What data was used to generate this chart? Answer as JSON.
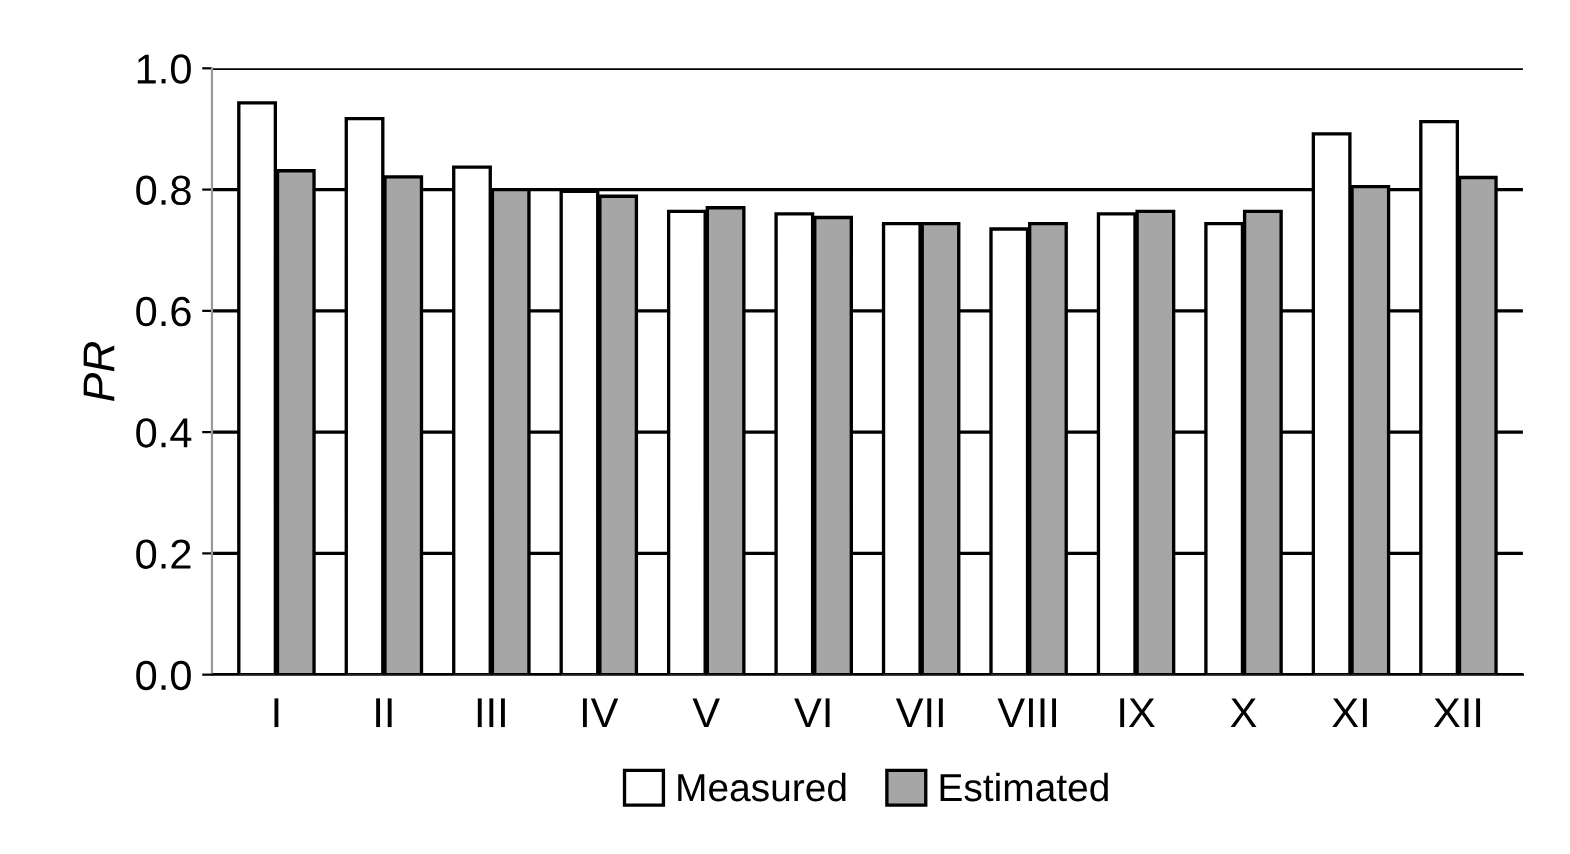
{
  "chart_data": {
    "type": "bar",
    "ylabel": "PR",
    "categories": [
      "I",
      "II",
      "III",
      "IV",
      "V",
      "VI",
      "VII",
      "VIII",
      "IX",
      "X",
      "XI",
      "XII"
    ],
    "series": [
      {
        "name": "Measured",
        "color": "#ffffff",
        "values": [
          0.943,
          0.917,
          0.837,
          0.797,
          0.764,
          0.76,
          0.744,
          0.735,
          0.76,
          0.744,
          0.892,
          0.912
        ]
      },
      {
        "name": "Estimated",
        "color": "#a6a6a6",
        "values": [
          0.831,
          0.821,
          0.8,
          0.789,
          0.77,
          0.754,
          0.744,
          0.744,
          0.764,
          0.764,
          0.805,
          0.82
        ]
      }
    ],
    "ylim": [
      0,
      1.0
    ],
    "yticks": [
      {
        "value": 0,
        "label": "0.0"
      },
      0.2,
      0.4,
      0.6,
      0.8,
      {
        "value": 1.0,
        "label": "1.0"
      }
    ],
    "grid": "y",
    "legend": "bottom"
  }
}
